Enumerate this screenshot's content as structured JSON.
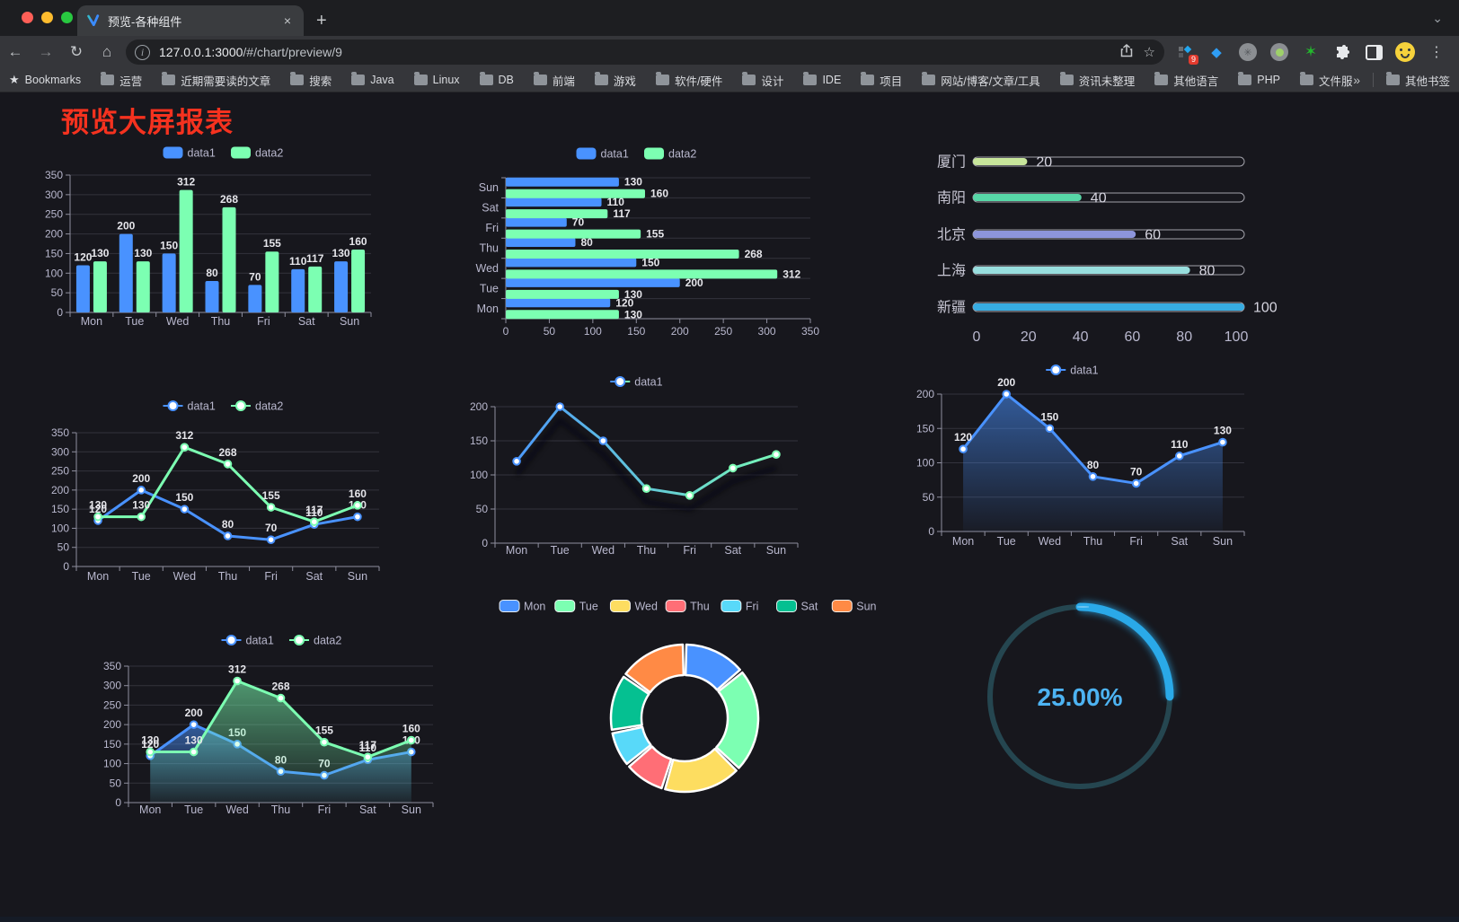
{
  "browser": {
    "tab_title": "预览-各种组件",
    "url_host": "127.0.0.1:3000",
    "url_path": "/#/chart/preview/9",
    "bookmarks_label": "Bookmarks",
    "bookmarks": [
      "运营",
      "近期需要读的文章",
      "搜索",
      "Java",
      "Linux",
      "DB",
      "前端",
      "游戏",
      "软件/硬件",
      "设计",
      "IDE",
      "项目",
      "网站/博客/文章/工具",
      "资讯未整理",
      "其他语言",
      "PHP",
      "文件服务器"
    ],
    "bookmarks_overflow": "»",
    "other_bookmarks": "其他书签",
    "extension_badge": "9",
    "icons": {
      "back": "←",
      "forward": "→",
      "reload": "↻",
      "home": "⌂",
      "new_tab": "+",
      "close_tab": "×",
      "menu": "⋮",
      "chevron": "⌄",
      "star": "☆",
      "share": "⬆",
      "gem": "◆",
      "green_star": "✶",
      "puzzle": "⬢"
    }
  },
  "page": {
    "title": "预览大屏报表",
    "title_color": "#f5321f",
    "background": "#17171d"
  },
  "chart_data": [
    {
      "id": "bar-vertical",
      "type": "bar",
      "categories": [
        "Mon",
        "Tue",
        "Wed",
        "Thu",
        "Fri",
        "Sat",
        "Sun"
      ],
      "series": [
        {
          "name": "data1",
          "color": "#4992ff",
          "values": [
            120,
            200,
            150,
            80,
            70,
            110,
            130
          ]
        },
        {
          "name": "data2",
          "color": "#7cffb2",
          "values": [
            130,
            130,
            312,
            268,
            155,
            117,
            160
          ]
        }
      ],
      "ylim": [
        0,
        350
      ],
      "ytick_step": 50,
      "legend_position": "top",
      "grid": true,
      "value_labels": true
    },
    {
      "id": "bar-horizontal",
      "type": "bar-horizontal",
      "categories_top_to_bottom": [
        "Sun",
        "Sat",
        "Fri",
        "Thu",
        "Wed",
        "Tue",
        "Mon"
      ],
      "series": [
        {
          "name": "data1",
          "color": "#4992ff",
          "values_top_to_bottom": [
            130,
            110,
            70,
            80,
            150,
            200,
            120
          ]
        },
        {
          "name": "data2",
          "color": "#7cffb2",
          "values_top_to_bottom": [
            160,
            117,
            155,
            268,
            312,
            130,
            130
          ]
        }
      ],
      "xlim": [
        0,
        350
      ],
      "xtick_step": 50,
      "legend_position": "top",
      "grid": true,
      "value_labels": true
    },
    {
      "id": "progress-bars",
      "type": "progress",
      "max": 100,
      "xticks": [
        0,
        20,
        40,
        60,
        80,
        100
      ],
      "items": [
        {
          "label": "厦门",
          "value": 20,
          "color": "#c8e69b"
        },
        {
          "label": "南阳",
          "value": 40,
          "color": "#57d7a7"
        },
        {
          "label": "北京",
          "value": 60,
          "color": "#8d95db"
        },
        {
          "label": "上海",
          "value": 80,
          "color": "#98dede"
        },
        {
          "label": "新疆",
          "value": 100,
          "color": "#37ace2"
        }
      ]
    },
    {
      "id": "line-dual",
      "type": "line",
      "categories": [
        "Mon",
        "Tue",
        "Wed",
        "Thu",
        "Fri",
        "Sat",
        "Sun"
      ],
      "series": [
        {
          "name": "data1",
          "color": "#4992ff",
          "values": [
            120,
            200,
            150,
            80,
            70,
            110,
            130
          ]
        },
        {
          "name": "data2",
          "color": "#7cffb2",
          "values": [
            130,
            130,
            312,
            268,
            155,
            117,
            160
          ]
        }
      ],
      "ylim": [
        0,
        350
      ],
      "ytick_step": 50,
      "legend_position": "top",
      "grid": true,
      "value_labels": true
    },
    {
      "id": "line-gradient",
      "type": "line",
      "categories": [
        "Mon",
        "Tue",
        "Wed",
        "Thu",
        "Fri",
        "Sat",
        "Sun"
      ],
      "series": [
        {
          "name": "data1",
          "gradient": [
            "#4992ff",
            "#7cffb2"
          ],
          "values": [
            120,
            200,
            150,
            80,
            70,
            110,
            130
          ]
        }
      ],
      "ylim": [
        0,
        200
      ],
      "ytick_step": 50,
      "legend_position": "top",
      "grid": true,
      "value_labels": false,
      "shadow": true
    },
    {
      "id": "area-single",
      "type": "line",
      "categories": [
        "Mon",
        "Tue",
        "Wed",
        "Thu",
        "Fri",
        "Sat",
        "Sun"
      ],
      "series": [
        {
          "name": "data1",
          "color": "#4992ff",
          "area": true,
          "values": [
            120,
            200,
            150,
            80,
            70,
            110,
            130
          ]
        }
      ],
      "ylim": [
        0,
        200
      ],
      "ytick_step": 50,
      "legend_position": "top",
      "grid": true,
      "value_labels": true
    },
    {
      "id": "area-dual",
      "type": "line",
      "categories": [
        "Mon",
        "Tue",
        "Wed",
        "Thu",
        "Fri",
        "Sat",
        "Sun"
      ],
      "series": [
        {
          "name": "data1",
          "color": "#4992ff",
          "area": true,
          "values": [
            120,
            200,
            150,
            80,
            70,
            110,
            130
          ]
        },
        {
          "name": "data2",
          "color": "#7cffb2",
          "area": true,
          "values": [
            130,
            130,
            312,
            268,
            155,
            117,
            160
          ]
        }
      ],
      "ylim": [
        0,
        350
      ],
      "ytick_step": 50,
      "legend_position": "top",
      "grid": true,
      "value_labels": true
    },
    {
      "id": "donut",
      "type": "donut",
      "items": [
        {
          "label": "Mon",
          "value": 120,
          "color": "#4992ff"
        },
        {
          "label": "Tue",
          "value": 200,
          "color": "#7cffb2"
        },
        {
          "label": "Wed",
          "value": 150,
          "color": "#fddd60"
        },
        {
          "label": "Thu",
          "value": 80,
          "color": "#ff6e76"
        },
        {
          "label": "Fri",
          "value": 70,
          "color": "#58d9f9"
        },
        {
          "label": "Sat",
          "value": 110,
          "color": "#05c091"
        },
        {
          "label": "Sun",
          "value": 130,
          "color": "#ff8a45"
        }
      ],
      "legend_position": "top"
    },
    {
      "id": "gauge",
      "type": "gauge",
      "value": 25,
      "label": "25.00%",
      "color": "#2aa9e8",
      "track_color": "#254650",
      "text_color": "#4db3f2"
    }
  ]
}
